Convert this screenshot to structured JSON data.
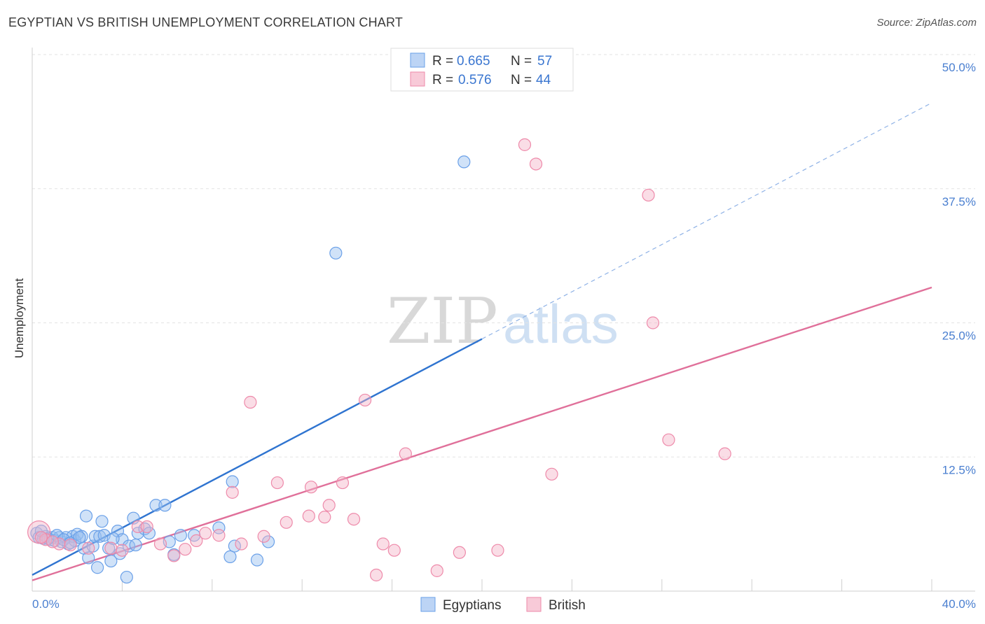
{
  "header": {
    "title": "EGYPTIAN VS BRITISH UNEMPLOYMENT CORRELATION CHART",
    "source": "Source: ZipAtlas.com"
  },
  "watermark": {
    "zip": "ZIP",
    "atlas": "atlas"
  },
  "stats_legend": {
    "r_label": "R =",
    "n_label": "N =",
    "rows": [
      {
        "series": "Egyptians",
        "r": "0.665",
        "n": "57",
        "color": "#6aa0e8"
      },
      {
        "series": "British",
        "r": "0.576",
        "n": "44",
        "color": "#ee8aaa"
      }
    ]
  },
  "bottom_legend": {
    "items": [
      "Egyptians",
      "British"
    ]
  },
  "chart_data": {
    "type": "scatter",
    "title": "EGYPTIAN VS BRITISH UNEMPLOYMENT CORRELATION CHART",
    "xlabel": "",
    "ylabel": "Unemployment",
    "xlim": [
      0,
      40
    ],
    "ylim": [
      0,
      50
    ],
    "x_tick_labels": [
      "0.0%",
      "40.0%"
    ],
    "y_ticks": [
      12.5,
      25.0,
      37.5,
      50.0
    ],
    "y_tick_labels": [
      "12.5%",
      "25.0%",
      "37.5%",
      "50.0%"
    ],
    "grid": true,
    "legend": "top-center",
    "series": [
      {
        "name": "Egyptians",
        "color": "#6aa0e8",
        "line_color": "#2f74d0",
        "trend": {
          "x0": 0,
          "y0": 1.5,
          "x1": 20,
          "y1": 23.5,
          "dashed_to_x": 40,
          "dashed_to_y": 45.5
        },
        "points": [
          [
            0.2,
            5.4
          ],
          [
            0.3,
            5.0
          ],
          [
            0.5,
            4.9
          ],
          [
            0.6,
            5.1
          ],
          [
            0.8,
            4.8
          ],
          [
            0.9,
            5.0
          ],
          [
            1.0,
            4.7
          ],
          [
            1.2,
            5.0
          ],
          [
            1.3,
            4.6
          ],
          [
            1.5,
            5.0
          ],
          [
            1.6,
            4.4
          ],
          [
            1.8,
            5.1
          ],
          [
            1.9,
            4.7
          ],
          [
            2.0,
            5.3
          ],
          [
            2.2,
            5.1
          ],
          [
            2.3,
            4.0
          ],
          [
            2.4,
            7.0
          ],
          [
            2.5,
            3.1
          ],
          [
            2.7,
            4.2
          ],
          [
            2.8,
            5.1
          ],
          [
            2.9,
            2.2
          ],
          [
            3.0,
            5.1
          ],
          [
            3.1,
            6.5
          ],
          [
            3.2,
            5.2
          ],
          [
            3.4,
            4.0
          ],
          [
            3.5,
            2.8
          ],
          [
            3.8,
            5.6
          ],
          [
            3.9,
            3.5
          ],
          [
            4.0,
            4.8
          ],
          [
            4.2,
            1.3
          ],
          [
            4.3,
            4.2
          ],
          [
            4.5,
            6.8
          ],
          [
            4.6,
            4.3
          ],
          [
            4.7,
            5.4
          ],
          [
            5.0,
            5.8
          ],
          [
            5.2,
            5.4
          ],
          [
            5.5,
            8.0
          ],
          [
            5.9,
            8.0
          ],
          [
            6.1,
            4.6
          ],
          [
            6.3,
            3.4
          ],
          [
            6.6,
            5.2
          ],
          [
            7.2,
            5.2
          ],
          [
            8.3,
            5.9
          ],
          [
            8.8,
            3.2
          ],
          [
            8.9,
            10.2
          ],
          [
            9.0,
            4.2
          ],
          [
            10.0,
            2.9
          ],
          [
            10.5,
            4.6
          ],
          [
            13.5,
            31.5
          ],
          [
            19.2,
            40.0
          ],
          [
            0.4,
            5.6
          ],
          [
            0.7,
            4.9
          ],
          [
            1.1,
            5.2
          ],
          [
            1.4,
            4.8
          ],
          [
            1.7,
            4.5
          ],
          [
            2.1,
            5.0
          ],
          [
            3.6,
            4.9
          ]
        ]
      },
      {
        "name": "British",
        "color": "#ee8aaa",
        "line_color": "#e0709a",
        "trend": {
          "x0": 0,
          "y0": 1.0,
          "x1": 40,
          "y1": 28.3
        },
        "points": [
          [
            0.3,
            5.5
          ],
          [
            0.6,
            4.8
          ],
          [
            1.2,
            4.4
          ],
          [
            1.7,
            4.3
          ],
          [
            2.5,
            4.0
          ],
          [
            3.5,
            4.0
          ],
          [
            4.0,
            3.8
          ],
          [
            4.7,
            6.0
          ],
          [
            5.1,
            6.0
          ],
          [
            5.7,
            4.4
          ],
          [
            6.3,
            3.3
          ],
          [
            6.8,
            3.9
          ],
          [
            7.3,
            4.7
          ],
          [
            7.7,
            5.4
          ],
          [
            8.3,
            5.2
          ],
          [
            8.9,
            9.2
          ],
          [
            9.3,
            4.4
          ],
          [
            9.7,
            17.6
          ],
          [
            10.3,
            5.1
          ],
          [
            10.9,
            10.1
          ],
          [
            11.3,
            6.4
          ],
          [
            12.3,
            7.0
          ],
          [
            12.4,
            9.7
          ],
          [
            13.0,
            6.9
          ],
          [
            13.2,
            8.0
          ],
          [
            13.8,
            10.1
          ],
          [
            14.3,
            6.7
          ],
          [
            14.8,
            17.8
          ],
          [
            15.3,
            1.5
          ],
          [
            15.6,
            4.4
          ],
          [
            16.1,
            3.8
          ],
          [
            16.6,
            12.8
          ],
          [
            18.0,
            1.9
          ],
          [
            19.0,
            3.6
          ],
          [
            20.7,
            3.8
          ],
          [
            21.9,
            41.6
          ],
          [
            22.4,
            39.8
          ],
          [
            23.1,
            10.9
          ],
          [
            27.4,
            36.9
          ],
          [
            27.6,
            25.0
          ],
          [
            28.3,
            14.1
          ],
          [
            30.8,
            12.8
          ],
          [
            0.4,
            5.0
          ],
          [
            0.9,
            4.6
          ]
        ]
      }
    ]
  }
}
